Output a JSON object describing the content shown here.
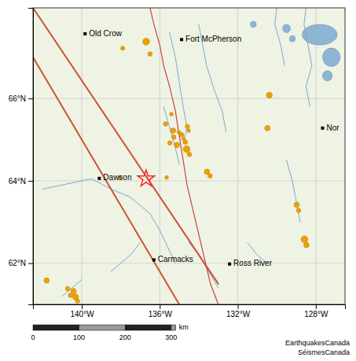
{
  "chart_data": {
    "type": "map",
    "xlim": [
      -142.5,
      -126.5
    ],
    "ylim": [
      61.0,
      68.2
    ],
    "xticks": [
      {
        "value": -140,
        "label": "140°W"
      },
      {
        "value": -136,
        "label": "136°W"
      },
      {
        "value": -132,
        "label": "132°W"
      },
      {
        "value": -128,
        "label": "128°W"
      }
    ],
    "yticks": [
      {
        "value": 62,
        "label": "62°N"
      },
      {
        "value": 64,
        "label": "64°N"
      },
      {
        "value": 66,
        "label": "66°N"
      }
    ],
    "grid": true,
    "places": {
      "names": [
        "Old Crow",
        "Fort McPherson",
        "Dawson",
        "Carmacks",
        "Ross River",
        "Nor"
      ],
      "x": [
        -139.83,
        -134.88,
        -139.1,
        -136.3,
        -132.42,
        -127.65
      ],
      "y": [
        67.57,
        67.43,
        64.06,
        62.08,
        61.98,
        65.28
      ]
    },
    "fault_lines": [
      {
        "x": [
          -142.5,
          -133.0
        ],
        "y": [
          68.2,
          61.5
        ],
        "color": "#cc5533"
      },
      {
        "x": [
          -142.5,
          -135.0
        ],
        "y": [
          67.0,
          61.0
        ],
        "color": "#cc5533"
      }
    ],
    "rivers": {
      "color": "#7aaad0",
      "lines": [
        {
          "x": [
            -142.0,
            -141.0,
            -139.5,
            -138.5,
            -137.5,
            -136.5,
            -136.0,
            -135.5,
            -135.2
          ],
          "y": [
            63.8,
            63.9,
            64.05,
            63.8,
            63.6,
            63.2,
            62.8,
            62.3,
            62.0
          ]
        },
        {
          "x": [
            -135.5,
            -135.2,
            -135.0,
            -134.8,
            -134.6,
            -134.8
          ],
          "y": [
            67.6,
            67.0,
            66.4,
            65.8,
            65.3,
            64.9
          ]
        },
        {
          "x": [
            -134.0,
            -133.8,
            -133.6,
            -133.2,
            -132.8,
            -132.6
          ],
          "y": [
            67.8,
            67.3,
            66.8,
            66.2,
            65.7,
            65.2
          ]
        },
        {
          "x": [
            -128.5,
            -128.6,
            -128.4,
            -128.2,
            -128.5,
            -128.3
          ],
          "y": [
            68.2,
            67.8,
            67.3,
            66.8,
            66.3,
            65.8
          ]
        },
        {
          "x": [
            -130.0,
            -130.1,
            -129.8,
            -129.6
          ],
          "y": [
            68.2,
            67.8,
            67.3,
            66.8
          ]
        },
        {
          "x": [
            -129.5,
            -129.2,
            -129.0,
            -128.8
          ],
          "y": [
            64.5,
            64.0,
            63.5,
            63.0
          ]
        },
        {
          "x": [
            -135.8,
            -135.5,
            -135.2,
            -135.0
          ],
          "y": [
            65.8,
            65.3,
            64.8,
            64.4
          ]
        },
        {
          "x": [
            -138.5,
            -138.0,
            -137.5,
            -137.0
          ],
          "y": [
            61.8,
            62.0,
            62.2,
            62.5
          ]
        },
        {
          "x": [
            -134.5,
            -134.0,
            -133.5,
            -133.0
          ],
          "y": [
            62.5,
            62.2,
            61.8,
            61.4
          ]
        },
        {
          "x": [
            -131.5,
            -131.0,
            -130.5
          ],
          "y": [
            62.5,
            62.2,
            62.0
          ]
        },
        {
          "x": [
            -141.0,
            -140.5,
            -140.0
          ],
          "y": [
            61.2,
            61.4,
            61.6
          ]
        }
      ]
    },
    "border": {
      "color": "#cc2222",
      "x": [
        -136.5,
        -136.3,
        -136.0,
        -135.8,
        -135.5,
        -135.2,
        -135.0,
        -134.8,
        -134.6,
        -134.3,
        -134.0,
        -133.7,
        -133.4,
        -133.0
      ],
      "y": [
        68.2,
        67.8,
        67.3,
        66.8,
        66.3,
        65.7,
        65.1,
        64.5,
        63.9,
        63.3,
        62.7,
        62.1,
        61.5,
        61.0
      ]
    },
    "lakes": {
      "color": "#7aaad0",
      "x": [
        -127.8,
        -127.2,
        -127.4,
        -129.5,
        -129.2,
        -131.2
      ],
      "y": [
        67.55,
        67.0,
        66.55,
        67.7,
        67.45,
        67.8
      ],
      "width": [
        1.8,
        0.9,
        0.5,
        0.4,
        0.3,
        0.3
      ],
      "height": [
        0.5,
        0.45,
        0.25,
        0.2,
        0.15,
        0.15
      ]
    },
    "earthquakes": {
      "color": "#f0a000",
      "x": [
        -137.9,
        -136.7,
        -136.5,
        -135.4,
        -135.7,
        -135.32,
        -135.28,
        -135.48,
        -135.12,
        -135.02,
        -134.88,
        -134.78,
        -134.68,
        -134.58,
        -134.52,
        -134.62,
        -134.48,
        -133.42,
        -133.58,
        -130.38,
        -130.48,
        -138.05,
        -128.98,
        -128.88,
        -128.58,
        -128.48,
        -141.8,
        -140.72,
        -140.42,
        -140.58,
        -140.32,
        -140.22,
        -135.65
      ],
      "y": [
        67.22,
        67.38,
        67.08,
        65.62,
        65.38,
        65.22,
        65.06,
        64.92,
        64.87,
        65.18,
        65.12,
        65.02,
        64.94,
        65.32,
        65.22,
        64.77,
        64.64,
        64.12,
        64.22,
        66.08,
        65.28,
        64.08,
        63.42,
        63.28,
        62.58,
        62.44,
        61.58,
        61.38,
        61.32,
        61.22,
        61.18,
        61.08,
        64.08
      ],
      "size": [
        4.2,
        7.0,
        4.5,
        3.8,
        4.5,
        5.5,
        4.5,
        4.5,
        5.5,
        3.8,
        4.5,
        3.8,
        4.5,
        4.5,
        3.8,
        7.0,
        4.5,
        4.5,
        5.5,
        6.0,
        5.5,
        3.8,
        5.5,
        4.5,
        7.0,
        5.5,
        5.5,
        4.5,
        5.5,
        4.5,
        6.0,
        4.5,
        3.8
      ]
    },
    "mainshock": {
      "x": -136.7,
      "y": 64.05,
      "color": "#ff2222"
    },
    "scale_bar": {
      "xlim": [
        0,
        340
      ],
      "edges": [
        0,
        100,
        200,
        300,
        310
      ],
      "ticks": [
        0,
        100,
        200,
        300
      ],
      "label": "km"
    },
    "attribution": [
      "EarthquakesCanada",
      "SéismesCanada"
    ]
  }
}
